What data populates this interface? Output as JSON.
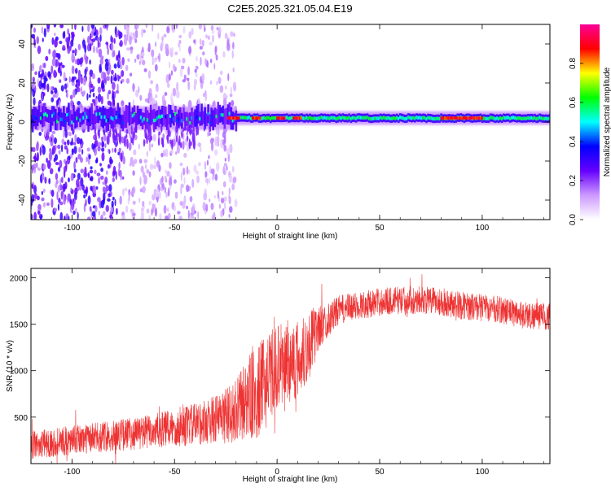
{
  "chart_data": [
    {
      "type": "heatmap",
      "title": "C2E5.2025.321.05.04.E19",
      "xlabel": "Height of straight line (km)",
      "ylabel": "Frequency (Hz)",
      "xlim": [
        -120,
        133
      ],
      "ylim": [
        -50,
        50
      ],
      "xticks": [
        -100,
        -50,
        0,
        50,
        100
      ],
      "yticks": [
        -40,
        -20,
        0,
        20,
        40
      ],
      "colorbar": {
        "label": "Normalized spectral amplitude",
        "range": [
          0.0,
          1.0
        ],
        "ticks": [
          "0.0",
          "0.2",
          "0.4",
          "0.6",
          "0.8"
        ],
        "colors": [
          "#ffffff",
          "#cc99ff",
          "#6600ff",
          "#0000ff",
          "#00ffff",
          "#00ff00",
          "#ffff00",
          "#ff0000",
          "#ff0099"
        ]
      },
      "band": {
        "center_freq_hz": 2,
        "narrow_from_km": -20,
        "bright_segments_km": [
          [
            -24,
            -18
          ],
          [
            -12,
            -8
          ],
          [
            0,
            4
          ],
          [
            8,
            12
          ],
          [
            80,
            100
          ]
        ],
        "noise_spread_until_km": -25,
        "strong_noise_until_km": -75
      }
    },
    {
      "type": "line",
      "xlabel": "Height of straight line (km)",
      "ylabel": "SNR (10 * v/v)",
      "xlim": [
        -120,
        133
      ],
      "ylim": [
        0,
        2100
      ],
      "xticks": [
        -100,
        -50,
        0,
        50,
        100
      ],
      "yticks": [
        500,
        1000,
        1500,
        2000
      ],
      "series": [
        {
          "name": "SNR",
          "color": "#ee3333",
          "envelope": {
            "x": [
              -120,
              -100,
              -80,
              -60,
              -40,
              -30,
              -20,
              -15,
              -10,
              -5,
              0,
              5,
              10,
              15,
              20,
              25,
              30,
              40,
              50,
              60,
              70,
              80,
              90,
              100,
              110,
              120,
              133
            ],
            "mean": [
              200,
              250,
              300,
              350,
              420,
              480,
              550,
              700,
              750,
              900,
              1050,
              1100,
              1100,
              1250,
              1450,
              1550,
              1650,
              1700,
              1740,
              1760,
              1760,
              1740,
              1700,
              1680,
              1650,
              1600,
              1580
            ],
            "spread": [
              150,
              160,
              170,
              190,
              230,
              260,
              350,
              450,
              500,
              500,
              450,
              450,
              450,
              400,
              250,
              180,
              160,
              150,
              150,
              150,
              150,
              150,
              150,
              150,
              150,
              150,
              150
            ]
          }
        }
      ]
    }
  ]
}
